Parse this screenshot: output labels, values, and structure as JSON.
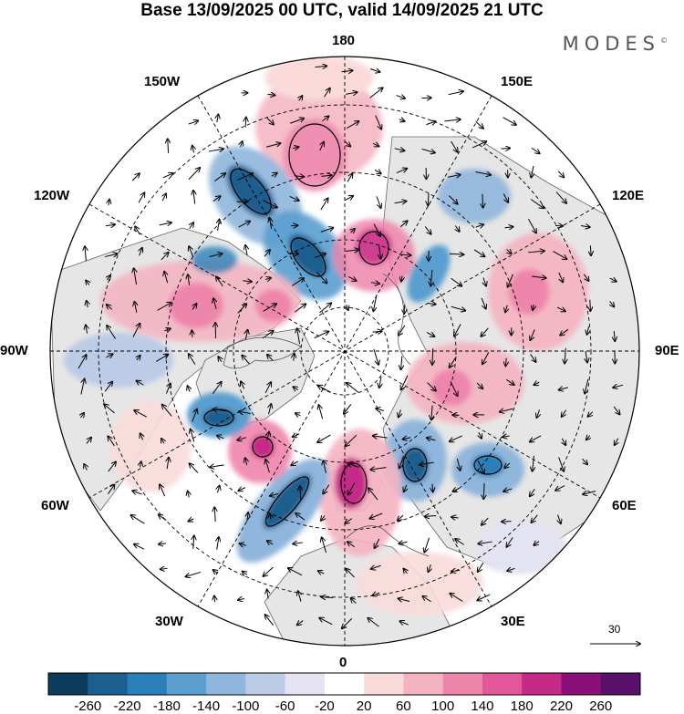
{
  "title": "Base 13/09/2025 00 UTC, valid 14/09/2025 21 UTC",
  "brand": "MODES",
  "brand_mark": "©",
  "longitude_labels": {
    "top": "180",
    "bottom": "0",
    "left": "90W",
    "right": "90E",
    "nw_upper": "150W",
    "nw_lower": "120W",
    "ne_upper": "150E",
    "ne_lower": "120E",
    "sw_upper": "60W",
    "sw_lower": "30W",
    "se_upper": "60E",
    "se_lower": "30E"
  },
  "vector_reference": "30",
  "colorbar": {
    "ticks": [
      "-260",
      "-220",
      "-180",
      "-140",
      "-100",
      "-60",
      "-20",
      "20",
      "60",
      "100",
      "140",
      "180",
      "220",
      "260"
    ],
    "colors": [
      "#0d3b5e",
      "#1a5f8f",
      "#2b7fb8",
      "#5a9fcf",
      "#8fb6dc",
      "#bccbe6",
      "#e4e3f1",
      "#ffffff",
      "#fbdada",
      "#f5b3c1",
      "#ee85ab",
      "#e2579a",
      "#c62a88",
      "#8a0f7a",
      "#58106b"
    ]
  },
  "colors": {
    "land_fill": "#e6e6e6",
    "coast": "#555555",
    "grid": "#000000"
  }
}
